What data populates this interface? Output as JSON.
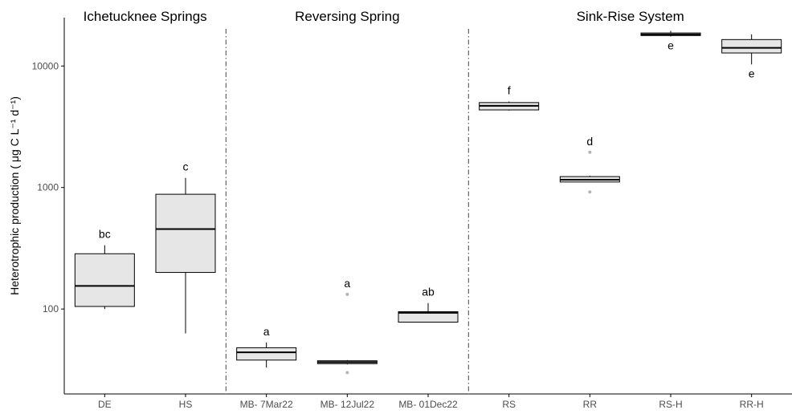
{
  "chart_data": {
    "type": "box",
    "yscale": "log",
    "ylabel": "Heterotrophic production ( μg C L⁻¹ d⁻¹)",
    "ylim": [
      20,
      25000
    ],
    "yticks": [
      100,
      1000,
      10000
    ],
    "ytick_labels": [
      "100",
      "1000",
      "10000"
    ],
    "groups": [
      {
        "name": "Ichetucknee Springs",
        "categories": [
          "DE",
          "HS"
        ]
      },
      {
        "name": "Reversing Spring",
        "categories": [
          "MB- 7Mar22",
          "MB- 12Jul22",
          "MB- 01Dec22"
        ]
      },
      {
        "name": "Sink-Rise System",
        "categories": [
          "RS",
          "RR",
          "RS-H",
          "RR-H"
        ]
      }
    ],
    "boxes": [
      {
        "category": "DE",
        "min": 100,
        "q1": 105,
        "median": 155,
        "q3": 285,
        "max": 335,
        "outliers": [],
        "letter": "bc"
      },
      {
        "category": "HS",
        "min": 63,
        "q1": 200,
        "median": 455,
        "q3": 880,
        "max": 1200,
        "outliers": [],
        "letter": "c"
      },
      {
        "category": "MB- 7Mar22",
        "min": 33,
        "q1": 38,
        "median": 44,
        "q3": 48,
        "max": 53,
        "outliers": [],
        "letter": "a"
      },
      {
        "category": "MB- 12Jul22",
        "min": 35,
        "q1": 35.5,
        "median": 36.5,
        "q3": 37.5,
        "max": 38,
        "outliers": [
          30,
          132
        ],
        "letter": "a"
      },
      {
        "category": "MB- 01Dec22",
        "min": 78,
        "q1": 78,
        "median": 93,
        "q3": 95,
        "max": 112,
        "outliers": [],
        "letter": "ab"
      },
      {
        "category": "RS",
        "min": 4300,
        "q1": 4350,
        "median": 4700,
        "q3": 5000,
        "max": 5100,
        "outliers": [],
        "letter": "f"
      },
      {
        "category": "RR",
        "min": 1110,
        "q1": 1110,
        "median": 1160,
        "q3": 1230,
        "max": 1250,
        "outliers": [
          920,
          1950
        ],
        "letter": "d"
      },
      {
        "category": "RS-H",
        "min": 17500,
        "q1": 17800,
        "median": 18200,
        "q3": 18700,
        "max": 19500,
        "outliers": [],
        "letter": "e"
      },
      {
        "category": "RR-H",
        "min": 10300,
        "q1": 12800,
        "median": 14100,
        "q3": 16500,
        "max": 18200,
        "outliers": [],
        "letter": "e"
      }
    ],
    "colors": {
      "box_fill": "#e6e6e6",
      "box_stroke": "#000000",
      "outlier": "#b5b5b5",
      "divider": "#555555"
    },
    "grid": false
  }
}
